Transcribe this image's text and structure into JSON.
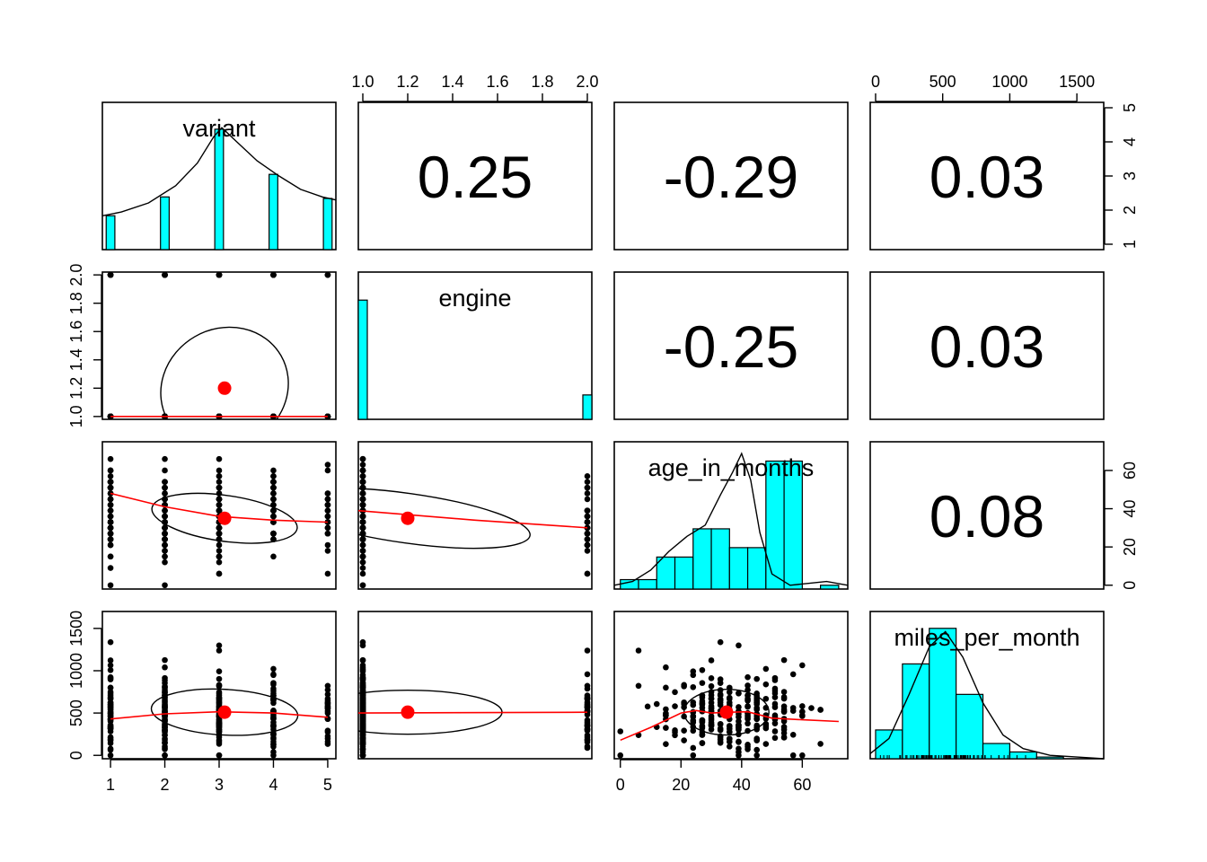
{
  "chart_data": {
    "type": "scatter",
    "variables": [
      "variant",
      "engine",
      "age_in_months",
      "miles_per_month"
    ],
    "axes": {
      "variant": {
        "range": [
          0.85,
          5.15
        ],
        "ticks": [
          "1",
          "2",
          "3",
          "4",
          "5"
        ],
        "tick_values": [
          1,
          2,
          3,
          4,
          5
        ]
      },
      "engine": {
        "range": [
          0.98,
          2.02
        ],
        "ticks": [
          "1.0",
          "1.2",
          "1.4",
          "1.6",
          "1.8",
          "2.0"
        ],
        "tick_values": [
          1.0,
          1.2,
          1.4,
          1.6,
          1.8,
          2.0
        ]
      },
      "age_in_months": {
        "range": [
          -2,
          75
        ],
        "ticks": [
          "0",
          "20",
          "40",
          "60"
        ],
        "tick_values": [
          0,
          20,
          40,
          60
        ]
      },
      "miles_per_month": {
        "range": [
          -40,
          1700
        ],
        "ticks": [
          "0",
          "500",
          "1000",
          "1500"
        ],
        "tick_values": [
          0,
          500,
          1000,
          1500
        ]
      }
    },
    "correlations": [
      {
        "row": "variant",
        "col": "engine",
        "value": "0.25"
      },
      {
        "row": "variant",
        "col": "age_in_months",
        "value": "-0.29"
      },
      {
        "row": "variant",
        "col": "miles_per_month",
        "value": "0.03"
      },
      {
        "row": "engine",
        "col": "age_in_months",
        "value": "-0.25"
      },
      {
        "row": "engine",
        "col": "miles_per_month",
        "value": "0.03"
      },
      {
        "row": "age_in_months",
        "col": "miles_per_month",
        "value": "0.08"
      }
    ],
    "histograms": {
      "variant": {
        "bins": [
          1,
          2,
          3,
          4,
          5
        ],
        "heights": [
          0.45,
          0.7,
          1.6,
          1.0,
          0.68
        ],
        "hmax": 1.8,
        "density": [
          [
            0.85,
            0.45
          ],
          [
            1.2,
            0.5
          ],
          [
            1.7,
            0.62
          ],
          [
            2.2,
            0.85
          ],
          [
            2.6,
            1.15
          ],
          [
            2.9,
            1.5
          ],
          [
            3.05,
            1.62
          ],
          [
            3.3,
            1.45
          ],
          [
            3.7,
            1.18
          ],
          [
            4.1,
            0.98
          ],
          [
            4.5,
            0.8
          ],
          [
            4.9,
            0.7
          ],
          [
            5.15,
            0.66
          ]
        ]
      },
      "engine": {
        "bins": [
          1.0,
          2.0
        ],
        "heights": [
          0.88,
          0.18
        ],
        "hmax": 1.0
      },
      "age_in_months": {
        "breaks": [
          0,
          6,
          12,
          18,
          24,
          30,
          36,
          42,
          48,
          54,
          60,
          66,
          72
        ],
        "heights": [
          0.05,
          0.05,
          0.17,
          0.17,
          0.32,
          0.32,
          0.22,
          0.22,
          0.68,
          0.68,
          0.0,
          0.02
        ],
        "hmax": 0.72,
        "density": [
          [
            -2,
            0.02
          ],
          [
            4,
            0.04
          ],
          [
            10,
            0.1
          ],
          [
            16,
            0.2
          ],
          [
            22,
            0.28
          ],
          [
            28,
            0.34
          ],
          [
            33,
            0.5
          ],
          [
            37,
            0.62
          ],
          [
            40,
            0.72
          ],
          [
            43,
            0.58
          ],
          [
            46,
            0.3
          ],
          [
            50,
            0.08
          ],
          [
            56,
            0.02
          ],
          [
            62,
            0.03
          ],
          [
            68,
            0.04
          ],
          [
            75,
            0.02
          ]
        ]
      },
      "miles_per_month": {
        "breaks": [
          0,
          200,
          400,
          600,
          800,
          1000,
          1200,
          1400,
          1600
        ],
        "heights": [
          0.17,
          0.56,
          0.77,
          0.38,
          0.09,
          0.04,
          0.01,
          0.0
        ],
        "hmax": 0.8,
        "density": [
          [
            -40,
            0.03
          ],
          [
            100,
            0.12
          ],
          [
            250,
            0.38
          ],
          [
            400,
            0.66
          ],
          [
            520,
            0.75
          ],
          [
            650,
            0.6
          ],
          [
            800,
            0.33
          ],
          [
            950,
            0.14
          ],
          [
            1100,
            0.06
          ],
          [
            1300,
            0.02
          ],
          [
            1500,
            0.01
          ],
          [
            1700,
            0.0
          ]
        ]
      }
    },
    "ellipses": {
      "variant_engine": {
        "cx": 3.1,
        "cy": 1.2,
        "rx": 1.2,
        "ry": 0.42,
        "rotation": 30
      },
      "variant_age_in_months": {
        "cx": 3.1,
        "cy": 35,
        "rx": 1.35,
        "ry": 12,
        "rotation": -8
      },
      "variant_miles_per_month": {
        "cx": 3.1,
        "cy": 510,
        "rx": 1.35,
        "ry": 270,
        "rotation": -3
      },
      "engine_age_in_months": {
        "cx": 1.2,
        "cy": 35,
        "rx": 0.55,
        "ry": 13,
        "rotation": -8
      },
      "engine_miles_per_month": {
        "cx": 1.2,
        "cy": 510,
        "rx": 0.42,
        "ry": 260,
        "rotation": 0
      },
      "age_in_months_miles_per_month": {
        "cx": 35,
        "cy": 510,
        "rx": 14,
        "ry": 270,
        "rotation": 0
      }
    },
    "loess": {
      "variant_engine": [
        [
          1,
          1.0
        ],
        [
          5,
          1.0
        ]
      ],
      "variant_age_in_months": [
        [
          1,
          48
        ],
        [
          2,
          41
        ],
        [
          3,
          36
        ],
        [
          4,
          34
        ],
        [
          5,
          33
        ]
      ],
      "variant_miles_per_month": [
        [
          1,
          430
        ],
        [
          2,
          490
        ],
        [
          3,
          515
        ],
        [
          4,
          500
        ],
        [
          5,
          450
        ]
      ],
      "engine_age_in_months": [
        [
          0.98,
          39
        ],
        [
          1.5,
          34
        ],
        [
          2.0,
          30
        ]
      ],
      "engine_miles_per_month": [
        [
          0.98,
          500
        ],
        [
          2.0,
          510
        ]
      ],
      "age_in_months_miles_per_month": [
        [
          0,
          180
        ],
        [
          10,
          330
        ],
        [
          20,
          500
        ],
        [
          25,
          530
        ],
        [
          30,
          500
        ],
        [
          36,
          510
        ],
        [
          42,
          515
        ],
        [
          50,
          440
        ],
        [
          60,
          420
        ],
        [
          72,
          400
        ]
      ]
    },
    "means": {
      "variant": 3.1,
      "engine": 1.2,
      "age_in_months": 35,
      "miles_per_month": 510
    },
    "colors": {
      "bars": "#00ffff",
      "smooth": "#ff0000",
      "mean_point": "#ff0000",
      "points": "#000000",
      "frame": "#000000"
    }
  }
}
